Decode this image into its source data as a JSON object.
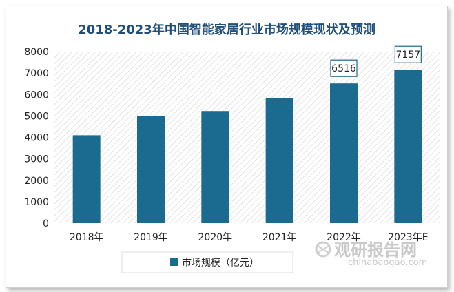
{
  "chart_data": {
    "type": "bar",
    "title": "2018-2023年中国智能家居行业市场规模现状及预测",
    "categories": [
      "2018年",
      "2019年",
      "2020年",
      "2021年",
      "2022年",
      "2023年E"
    ],
    "series": [
      {
        "name": "市场规模（亿元）",
        "values": [
          4100,
          4980,
          5230,
          5840,
          6516,
          7157
        ]
      }
    ],
    "data_labels": [
      null,
      null,
      null,
      null,
      "6516",
      "7157"
    ],
    "xlabel": "",
    "ylabel": "",
    "ylim": [
      0,
      8000
    ],
    "yticks": [
      "0",
      "1000",
      "2000",
      "3000",
      "4000",
      "5000",
      "6000",
      "7000",
      "8000"
    ],
    "grid": false,
    "legend": "bottom",
    "colors": {
      "bar": "#1b6a8f",
      "title": "#1f4e79",
      "label_border": "#1b6a8f"
    }
  },
  "watermark": {
    "cn": "观研报告网",
    "en": "chinabaogao.com"
  }
}
